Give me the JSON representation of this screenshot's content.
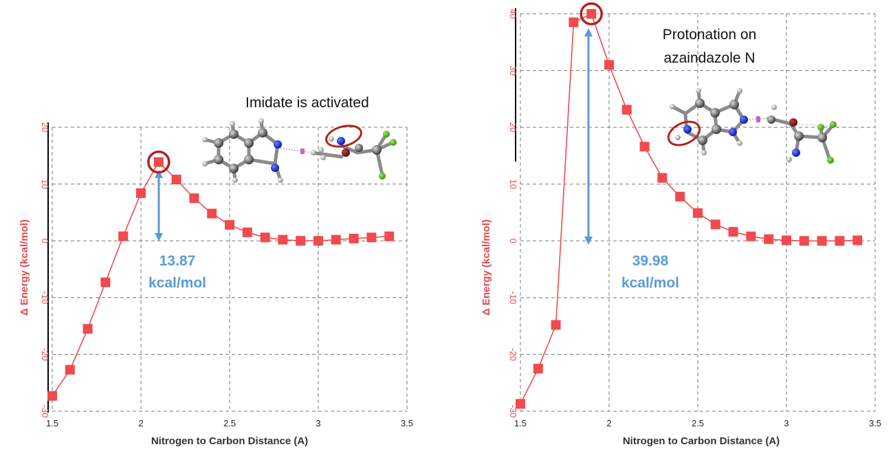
{
  "colors": {
    "series": "#f04a4d",
    "line": "#f04a4d",
    "highlight": "#b22222",
    "barrier": "#5b9bd5",
    "axis_title_y": "#e8474a",
    "grid": "#777777"
  },
  "chart_data": [
    {
      "type": "line",
      "xlabel": "Nitrogen to Carbon Distance (A)",
      "ylabel": "Δ Energy (kcal/mol)",
      "xlim": [
        1.5,
        3.5
      ],
      "ylim": [
        -30,
        20
      ],
      "xticks": [
        "1.5",
        "2",
        "2.5",
        "3",
        "3.5"
      ],
      "yticks": [
        "-30",
        "-20",
        "-10",
        "0",
        "10",
        "20"
      ],
      "grid": true,
      "series": [
        {
          "x": [
            1.5,
            1.6,
            1.7,
            1.8,
            1.9,
            2.0,
            2.1,
            2.2,
            2.3,
            2.4,
            2.5,
            2.6,
            2.7,
            2.8,
            2.9,
            3.0,
            3.1,
            3.2,
            3.3,
            3.4
          ],
          "y": [
            -27.3,
            -22.7,
            -15.5,
            -7.3,
            0.8,
            8.4,
            13.87,
            10.8,
            7.5,
            4.8,
            2.8,
            1.5,
            0.6,
            0.2,
            0.0,
            0.0,
            0.2,
            0.4,
            0.6,
            0.8
          ]
        }
      ],
      "highlight_x": 2.1,
      "annotations": {
        "note": "Imidate is activated",
        "barrier_value": "13.87",
        "barrier_unit": "kcal/mol"
      }
    },
    {
      "type": "line",
      "xlabel": "Nitrogen to Carbon Distance (A)",
      "ylabel": "Δ Energy (kcal/mol)",
      "xlim": [
        1.5,
        3.5
      ],
      "ylim": [
        -30,
        40
      ],
      "xticks": [
        "1.5",
        "2",
        "2.5",
        "3",
        "3.5"
      ],
      "yticks": [
        "-30",
        "-20",
        "-10",
        "0",
        "10",
        "20",
        "30",
        "40"
      ],
      "grid": true,
      "series": [
        {
          "x": [
            1.5,
            1.6,
            1.7,
            1.8,
            1.9,
            2.0,
            2.1,
            2.2,
            2.3,
            2.4,
            2.5,
            2.6,
            2.7,
            2.8,
            2.9,
            3.0,
            3.1,
            3.2,
            3.3,
            3.4
          ],
          "y": [
            -28.7,
            -22.5,
            -14.8,
            38.5,
            39.98,
            31.0,
            23.1,
            16.6,
            11.1,
            7.8,
            4.9,
            2.9,
            1.6,
            0.8,
            0.3,
            0.1,
            0.0,
            0.0,
            0.0,
            0.1
          ]
        }
      ],
      "highlight_x": 1.9,
      "annotations": {
        "note_line1": "Protonation on",
        "note_line2": "azaindazole N",
        "barrier_value": "39.98",
        "barrier_unit": "kcal/mol"
      }
    }
  ]
}
